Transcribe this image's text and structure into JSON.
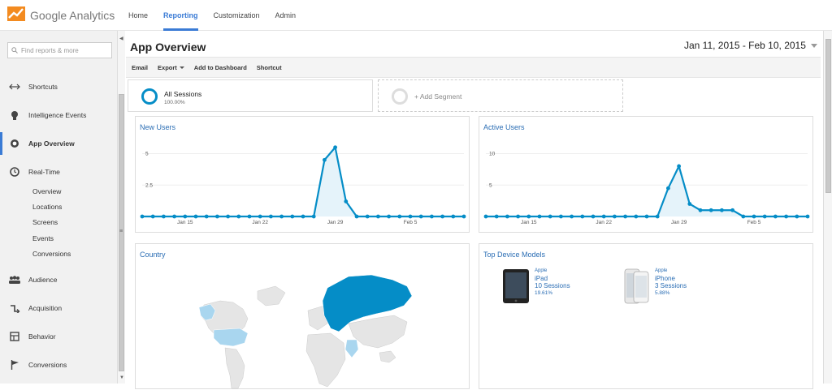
{
  "app": {
    "brand": "Google Analytics"
  },
  "topnav": [
    {
      "label": "Home",
      "active": false
    },
    {
      "label": "Reporting",
      "active": true
    },
    {
      "label": "Customization",
      "active": false
    },
    {
      "label": "Admin",
      "active": false
    }
  ],
  "sidebar": {
    "search_placeholder": "Find reports & more",
    "items": [
      {
        "label": "Shortcuts",
        "icon": "arrows-icon"
      },
      {
        "label": "Intelligence Events",
        "icon": "bulb-icon"
      },
      {
        "label": "App Overview",
        "icon": "circle-icon",
        "active": true
      },
      {
        "label": "Real-Time",
        "icon": "clock-icon"
      },
      {
        "label": "Audience",
        "icon": "people-icon"
      },
      {
        "label": "Acquisition",
        "icon": "acquisition-icon"
      },
      {
        "label": "Behavior",
        "icon": "behavior-icon"
      },
      {
        "label": "Conversions",
        "icon": "flag-icon"
      }
    ],
    "realtime_sub": [
      "Overview",
      "Locations",
      "Screens",
      "Events",
      "Conversions"
    ]
  },
  "main": {
    "title": "App Overview",
    "date_range": "Jan 11, 2015 - Feb 10, 2015",
    "toolbar": {
      "email": "Email",
      "export": "Export",
      "add_dashboard": "Add to Dashboard",
      "shortcut": "Shortcut"
    },
    "segments": {
      "all_label": "All Sessions",
      "all_pct": "100.00%",
      "add_label": "+ Add Segment"
    }
  },
  "cards": {
    "new_users_title": "New Users",
    "active_users_title": "Active Users",
    "country_title": "Country",
    "devices_title": "Top Device Models"
  },
  "devices": [
    {
      "brand": "Apple",
      "model": "iPad",
      "sessions": "10 Sessions",
      "pct": "19.61%"
    },
    {
      "brand": "Apple",
      "model": "iPhone",
      "sessions": "3 Sessions",
      "pct": "5.88%"
    }
  ],
  "colors": {
    "accent": "#058dc7",
    "link": "#2a6db4",
    "nav_active": "#3a7bd5"
  },
  "chart_data": [
    {
      "type": "line",
      "title": "New Users",
      "yticks": [
        "5",
        "2.5"
      ],
      "ylim": [
        0,
        6
      ],
      "xticks": [
        "Jan 15",
        "Jan 22",
        "Jan 29",
        "Feb 5"
      ],
      "values": [
        0,
        0,
        0,
        0,
        0,
        0,
        0,
        0,
        0,
        0,
        0,
        0,
        0,
        0,
        0,
        0,
        0,
        4.5,
        5.5,
        1.2,
        0,
        0,
        0,
        0,
        0,
        0,
        0,
        0,
        0,
        0,
        0
      ]
    },
    {
      "type": "line",
      "title": "Active Users",
      "yticks": [
        "10",
        "5"
      ],
      "ylim": [
        0,
        12
      ],
      "xticks": [
        "Jan 15",
        "Jan 22",
        "Jan 29",
        "Feb 5"
      ],
      "values": [
        0,
        0,
        0,
        0,
        0,
        0,
        0,
        0,
        0,
        0,
        0,
        0,
        0,
        0,
        0,
        0,
        0,
        4.5,
        8,
        2,
        1,
        1,
        1,
        1,
        0,
        0,
        0,
        0,
        0,
        0,
        0
      ]
    }
  ]
}
